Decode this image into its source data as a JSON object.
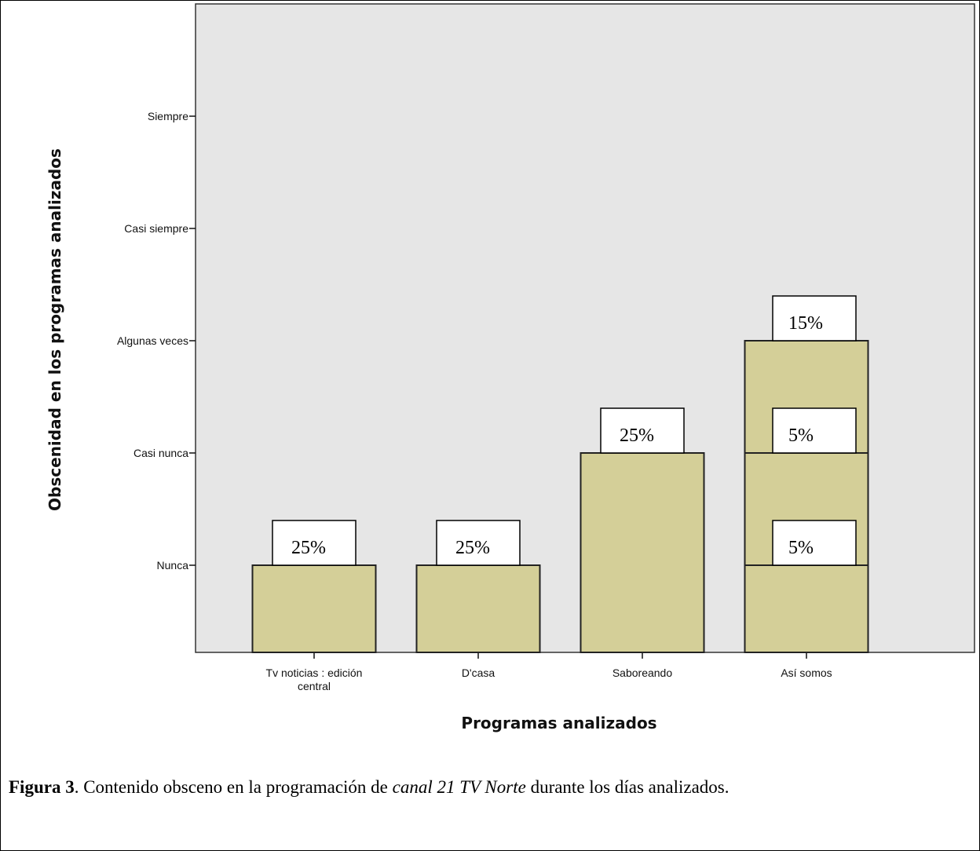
{
  "chart_data": {
    "type": "bar",
    "title": "",
    "xlabel": "Programas analizados",
    "ylabel": "Obscenidad en los programas analizados",
    "y_categories": [
      "Nunca",
      "Casi nunca",
      "Algunas veces",
      "Casi siempre",
      "Siempre"
    ],
    "categories": [
      "Tv noticias : edición central",
      "D'casa",
      "Saboreando",
      "Así somos"
    ],
    "category_label_lines": [
      [
        "Tv noticias : edición",
        "central"
      ],
      [
        "D'casa"
      ],
      [
        "Saboreando"
      ],
      [
        "Así somos"
      ]
    ],
    "values": [
      "Nunca",
      "Nunca",
      "Casi nunca",
      "Algunas veces"
    ],
    "stacked_segments": [
      [
        {
          "level": "Nunca",
          "label": "25%"
        }
      ],
      [
        {
          "level": "Nunca",
          "label": "25%"
        }
      ],
      [
        {
          "level": "Casi nunca",
          "label": "25%"
        }
      ],
      [
        {
          "level": "Nunca",
          "label": "5%"
        },
        {
          "level": "Casi nunca",
          "label": "5%"
        },
        {
          "level": "Algunas veces",
          "label": "15%"
        }
      ]
    ],
    "grid": false,
    "legend": "none",
    "bar_color": "#d4cf98",
    "plot_background": "#e6e6e6"
  },
  "caption": {
    "figure_label": "Figura 3",
    "text_before": ". Contenido obsceno en la programación de ",
    "italic_text": "canal 21 TV Norte",
    "text_after": " durante los días analizados."
  }
}
